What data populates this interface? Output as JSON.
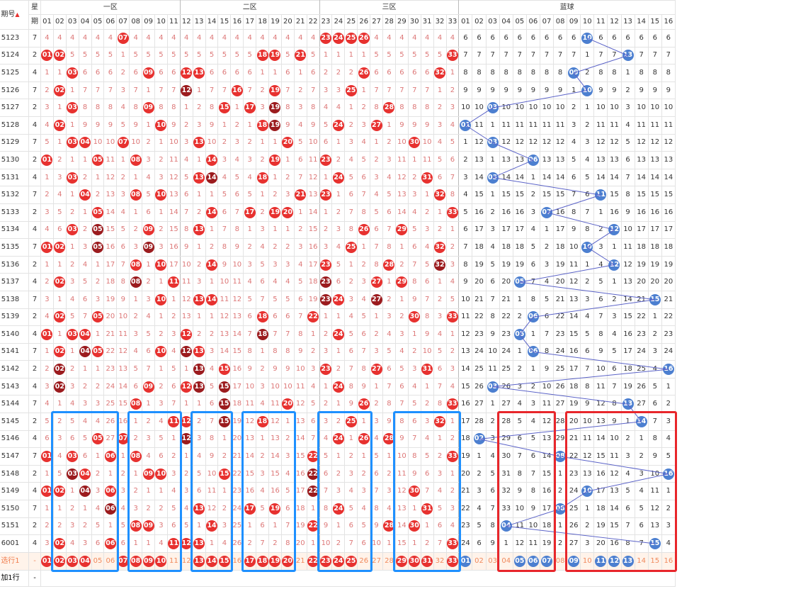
{
  "header": {
    "issue_label": "期号",
    "sort_icon": "sort-arrow-icon",
    "week_label_1": "星",
    "week_label_2": "期",
    "zone1": "一区",
    "zone2": "二区",
    "zone3": "三区",
    "blue": "蓝球",
    "red_numbers": [
      "01",
      "02",
      "03",
      "04",
      "05",
      "06",
      "07",
      "08",
      "09",
      "10",
      "11",
      "12",
      "13",
      "14",
      "15",
      "16",
      "17",
      "18",
      "19",
      "20",
      "21",
      "22",
      "23",
      "24",
      "25",
      "26",
      "27",
      "28",
      "29",
      "30",
      "31",
      "32",
      "33"
    ],
    "blue_numbers": [
      "01",
      "02",
      "03",
      "04",
      "05",
      "06",
      "07",
      "08",
      "09",
      "10",
      "11",
      "12",
      "13",
      "14",
      "15",
      "16"
    ]
  },
  "rows": [
    {
      "issue": "5123",
      "week": "7",
      "reds": [
        7,
        23,
        24,
        25,
        26
      ],
      "blue": 10
    },
    {
      "issue": "5124",
      "week": "2",
      "reds": [
        1,
        2,
        18,
        19,
        21,
        33
      ],
      "blue": 13
    },
    {
      "issue": "5125",
      "week": "4",
      "reds": [
        3,
        9,
        12,
        13,
        26,
        32
      ],
      "blue": 9
    },
    {
      "issue": "5126",
      "week": "7",
      "reds": [
        2,
        12,
        16,
        19,
        25
      ],
      "blue": 10
    },
    {
      "issue": "5127",
      "week": "2",
      "reds": [
        3,
        9,
        15,
        17,
        19,
        28
      ],
      "blue": 3
    },
    {
      "issue": "5128",
      "week": "4",
      "reds": [
        2,
        10,
        18,
        19,
        24,
        27
      ],
      "blue": 1
    },
    {
      "issue": "5129",
      "week": "7",
      "reds": [
        3,
        4,
        7,
        13,
        20,
        30
      ],
      "blue": 3
    },
    {
      "issue": "5130",
      "week": "2",
      "reds": [
        1,
        5,
        8,
        14,
        19,
        23
      ],
      "blue": 6
    },
    {
      "issue": "5131",
      "week": "4",
      "reds": [
        3,
        13,
        14,
        18,
        24,
        31
      ],
      "blue": 3
    },
    {
      "issue": "5132",
      "week": "7",
      "reds": [
        4,
        8,
        10,
        21,
        23,
        32
      ],
      "blue": 11
    },
    {
      "issue": "5133",
      "week": "2",
      "reds": [
        5,
        14,
        17,
        19,
        20,
        33
      ],
      "blue": 7
    },
    {
      "issue": "5134",
      "week": "4",
      "reds": [
        3,
        5,
        9,
        13,
        26,
        29
      ],
      "blue": 12
    },
    {
      "issue": "5135",
      "week": "7",
      "reds": [
        1,
        2,
        5,
        9,
        25,
        32
      ],
      "blue": 10
    },
    {
      "issue": "5136",
      "week": "2",
      "reds": [
        8,
        10,
        14,
        23,
        28,
        32
      ],
      "blue": 12
    },
    {
      "issue": "5137",
      "week": "4",
      "reds": [
        2,
        8,
        11,
        23,
        27,
        29
      ],
      "blue": 5
    },
    {
      "issue": "5138",
      "week": "7",
      "reds": [
        10,
        13,
        14,
        23,
        24,
        27
      ],
      "blue": 15
    },
    {
      "issue": "5139",
      "week": "2",
      "reds": [
        2,
        5,
        18,
        22,
        30,
        33
      ],
      "blue": 6
    },
    {
      "issue": "5140",
      "week": "4",
      "reds": [
        1,
        3,
        4,
        12,
        18,
        24
      ],
      "blue": 5
    },
    {
      "issue": "5141",
      "week": "7",
      "reds": [
        2,
        4,
        5,
        10,
        12,
        13
      ],
      "blue": 6
    },
    {
      "issue": "5142",
      "week": "2",
      "reds": [
        2,
        13,
        15,
        23,
        27,
        31
      ],
      "blue": 16
    },
    {
      "issue": "5143",
      "week": "4",
      "reds": [
        2,
        9,
        12,
        13,
        15,
        24
      ],
      "blue": 3
    },
    {
      "issue": "5144",
      "week": "7",
      "reds": [
        8,
        15,
        20,
        26,
        33
      ],
      "blue": 13
    },
    {
      "issue": "5145",
      "week": "2",
      "reds": [
        11,
        12,
        15,
        18,
        25,
        32
      ],
      "blue": 14
    },
    {
      "issue": "5146",
      "week": "4",
      "reds": [
        5,
        7,
        12,
        24,
        26,
        28
      ],
      "blue": 2
    },
    {
      "issue": "5147",
      "week": "7",
      "reds": [
        1,
        3,
        6,
        8,
        22,
        33
      ],
      "blue": 8
    },
    {
      "issue": "5148",
      "week": "2",
      "reds": [
        3,
        4,
        9,
        10,
        15,
        22
      ],
      "blue": 16
    },
    {
      "issue": "5149",
      "week": "4",
      "reds": [
        1,
        2,
        4,
        6,
        22,
        30
      ],
      "blue": 10
    },
    {
      "issue": "5150",
      "week": "7",
      "reds": [
        6,
        13,
        17,
        19,
        24,
        31
      ],
      "blue": 8
    },
    {
      "issue": "5151",
      "week": "2",
      "reds": [
        8,
        9,
        14,
        22,
        28,
        30
      ],
      "blue": 4
    },
    {
      "issue": "6001",
      "week": "4",
      "reds": [
        2,
        6,
        11,
        12,
        13,
        33
      ],
      "blue": 15
    }
  ],
  "stat_row": {
    "label": "选行1",
    "week": "-",
    "reds": [
      1,
      2,
      3,
      4,
      7,
      8,
      9,
      10,
      13,
      14,
      15,
      17,
      18,
      19,
      20,
      22,
      23,
      24,
      25,
      29,
      30,
      31,
      33
    ],
    "blues": [
      1,
      5,
      6,
      7,
      9,
      11,
      12,
      13
    ]
  },
  "add_row": {
    "label": "加1行",
    "week": "-"
  },
  "colors": {
    "red_ball": "#e7312f",
    "dark_ball": "#9b1b1e",
    "blue_ball": "#4c7fd0",
    "box_blue": "#1e90ff",
    "box_red": "#e8262b",
    "line": "#5b63c8"
  }
}
